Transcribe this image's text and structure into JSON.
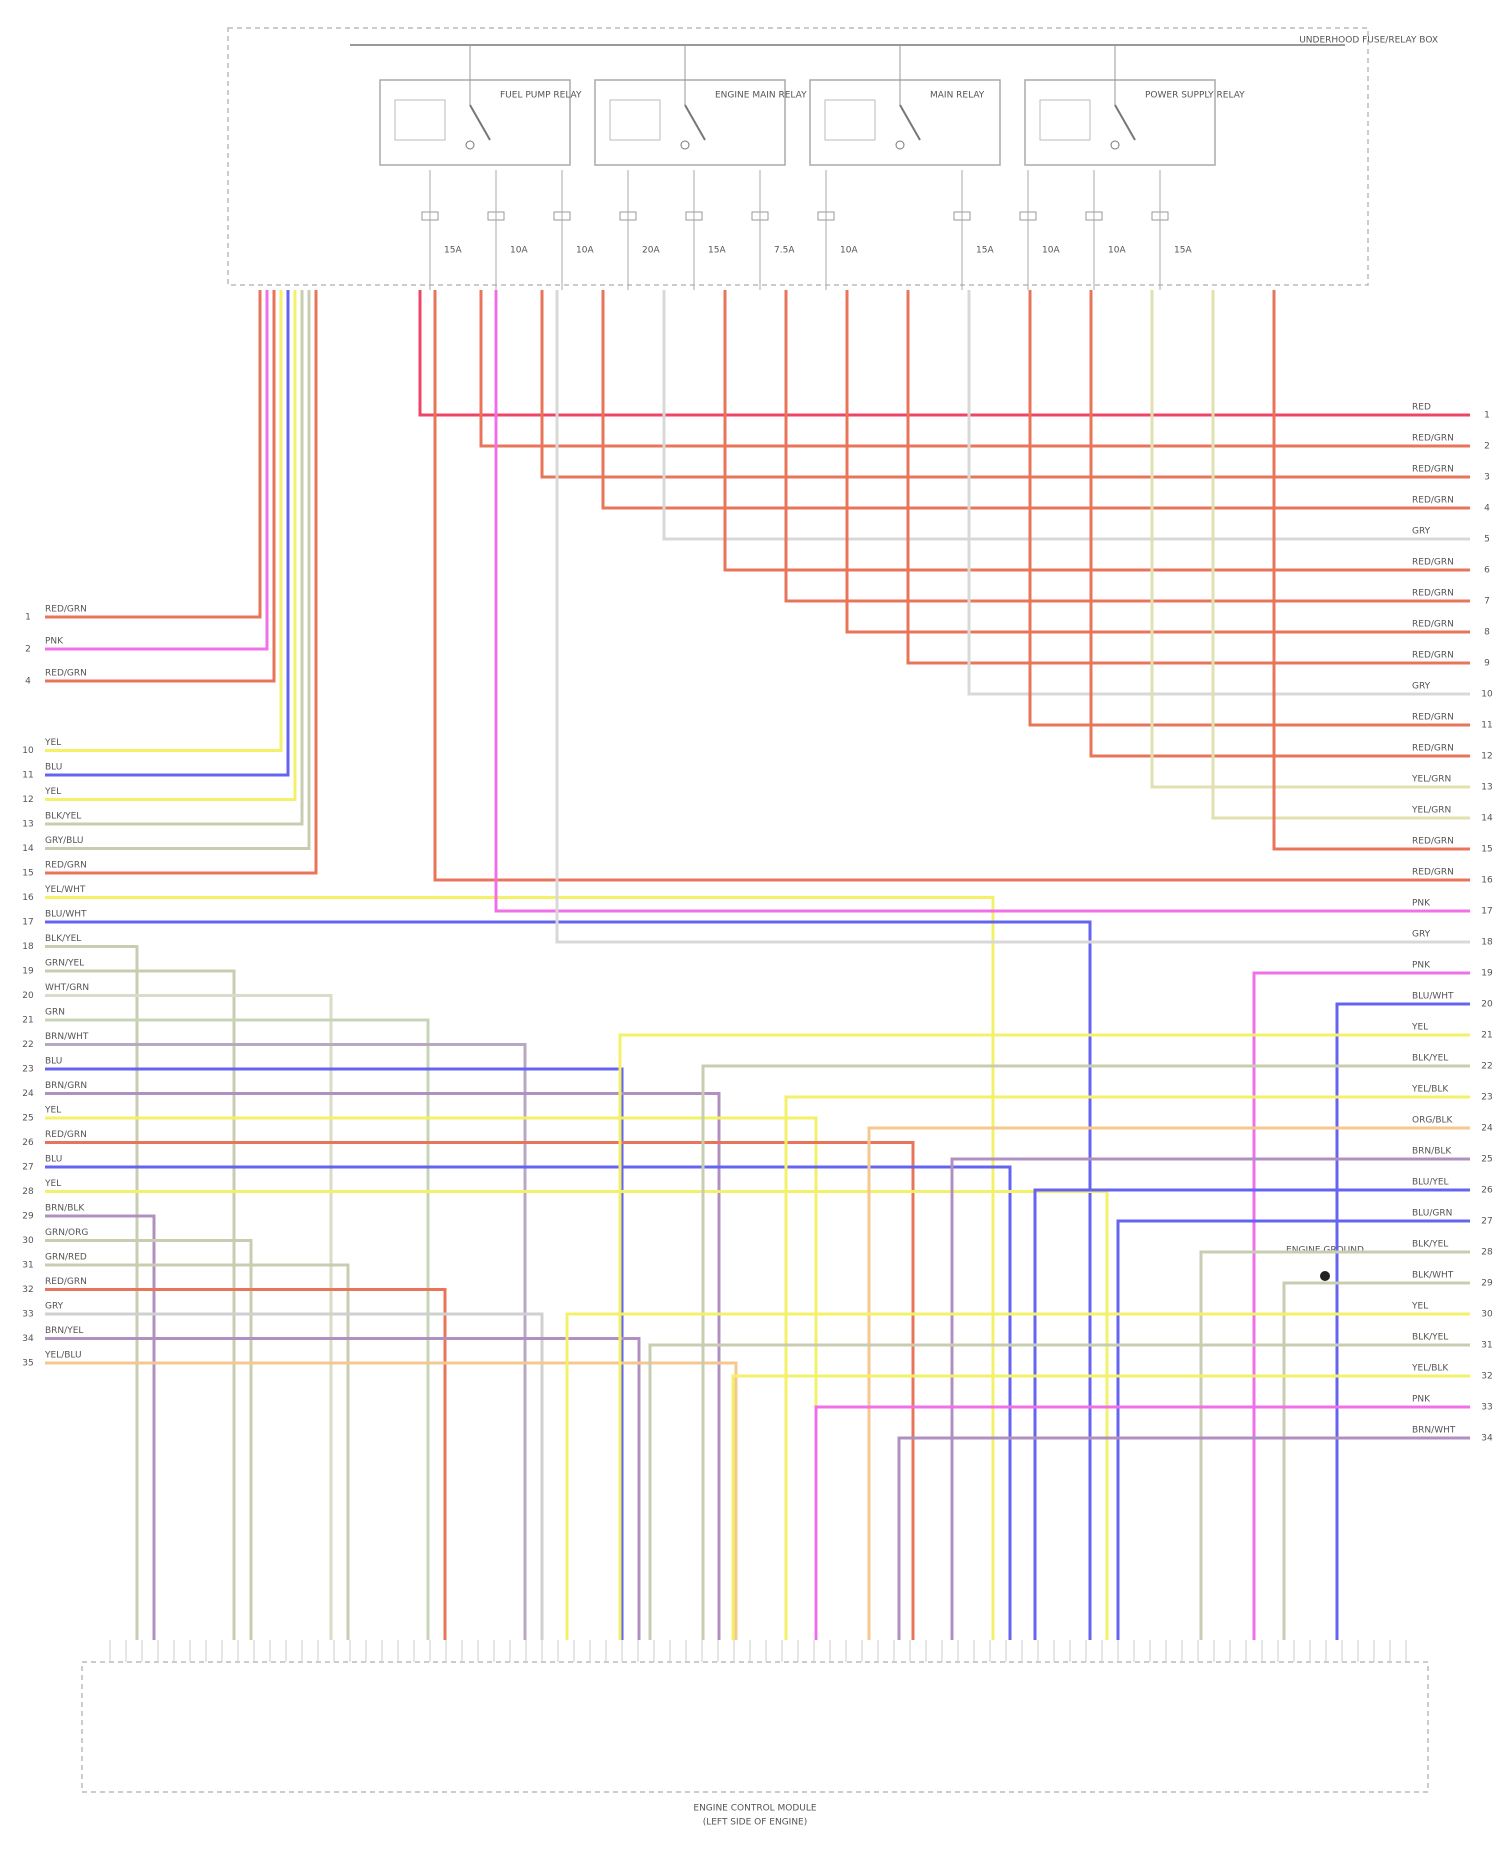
{
  "diagram": {
    "fuse_box_label": "UNDERHOOD FUSE/RELAY BOX",
    "relays": [
      {
        "label": "FUEL PUMP RELAY"
      },
      {
        "label": "ENGINE MAIN RELAY"
      },
      {
        "label": "MAIN RELAY"
      },
      {
        "label": "POWER SUPPLY RELAY"
      }
    ],
    "fuses": [
      "15A",
      "10A",
      "10A",
      "20A",
      "15A",
      "7.5A",
      "10A",
      "15A",
      "10A",
      "10A",
      "15A"
    ],
    "left_wires": [
      {
        "pin": "1",
        "label": "RED/GRN",
        "stroke": "#e8745a"
      },
      {
        "pin": "2",
        "label": "PNK",
        "stroke": "#f070e8"
      },
      {
        "pin": "4",
        "label": "RED/GRN",
        "stroke": "#e8745a"
      },
      {
        "pin": "10",
        "label": "YEL",
        "stroke": "#f3f06a"
      },
      {
        "pin": "11",
        "label": "BLU",
        "stroke": "#6464f0"
      },
      {
        "pin": "12",
        "label": "YEL",
        "stroke": "#f3f06a"
      },
      {
        "pin": "13",
        "label": "BLK/YEL",
        "stroke": "#c8ccb0"
      },
      {
        "pin": "14",
        "label": "GRY/BLU",
        "stroke": "#c8ccb0"
      },
      {
        "pin": "15",
        "label": "RED/GRN",
        "stroke": "#e8745a"
      },
      {
        "pin": "16",
        "label": "YEL/WHT",
        "stroke": "#f3f06a"
      },
      {
        "pin": "17",
        "label": "BLU/WHT",
        "stroke": "#6464f0"
      },
      {
        "pin": "18",
        "label": "BLK/YEL",
        "stroke": "#c8ccb0"
      },
      {
        "pin": "19",
        "label": "GRN/YEL",
        "stroke": "#c8ccb0"
      },
      {
        "pin": "20",
        "label": "WHT/GRN",
        "stroke": "#d8dcc8"
      },
      {
        "pin": "21",
        "label": "GRN",
        "stroke": "#c8d4b8"
      },
      {
        "pin": "22",
        "label": "BRN/WHT",
        "stroke": "#b8a8c0"
      },
      {
        "pin": "23",
        "label": "BLU",
        "stroke": "#6464f0"
      },
      {
        "pin": "24",
        "label": "BRN/GRN",
        "stroke": "#b090c0"
      },
      {
        "pin": "25",
        "label": "YEL",
        "stroke": "#f3f06a"
      },
      {
        "pin": "26",
        "label": "RED/GRN",
        "stroke": "#e8745a"
      },
      {
        "pin": "27",
        "label": "BLU",
        "stroke": "#6464f0"
      },
      {
        "pin": "28",
        "label": "YEL",
        "stroke": "#f3f06a"
      },
      {
        "pin": "29",
        "label": "BRN/BLK",
        "stroke": "#b090c0"
      },
      {
        "pin": "30",
        "label": "GRN/ORG",
        "stroke": "#c8ccb0"
      },
      {
        "pin": "31",
        "label": "GRN/RED",
        "stroke": "#c8ccb0"
      },
      {
        "pin": "32",
        "label": "RED/GRN",
        "stroke": "#e8745a"
      },
      {
        "pin": "33",
        "label": "GRY",
        "stroke": "#d0d0d0"
      },
      {
        "pin": "34",
        "label": "BRN/YEL",
        "stroke": "#b090c0"
      },
      {
        "pin": "35",
        "label": "YEL/BLU",
        "stroke": "#f5c890"
      }
    ],
    "right_wires": [
      {
        "pin": "1",
        "label": "RED",
        "stroke": "#ee4466"
      },
      {
        "pin": "2",
        "label": "RED/GRN",
        "stroke": "#e8745a"
      },
      {
        "pin": "3",
        "label": "RED/GRN",
        "stroke": "#e8745a"
      },
      {
        "pin": "4",
        "label": "RED/GRN",
        "stroke": "#e8745a"
      },
      {
        "pin": "5",
        "label": "GRY",
        "stroke": "#d8d8d8"
      },
      {
        "pin": "6",
        "label": "RED/GRN",
        "stroke": "#e8745a"
      },
      {
        "pin": "7",
        "label": "RED/GRN",
        "stroke": "#e8745a"
      },
      {
        "pin": "8",
        "label": "RED/GRN",
        "stroke": "#e8745a"
      },
      {
        "pin": "9",
        "label": "RED/GRN",
        "stroke": "#e8745a"
      },
      {
        "pin": "10",
        "label": "GRY",
        "stroke": "#d8d8d8"
      },
      {
        "pin": "11",
        "label": "RED/GRN",
        "stroke": "#e8745a"
      },
      {
        "pin": "12",
        "label": "RED/GRN",
        "stroke": "#e8745a"
      },
      {
        "pin": "13",
        "label": "YEL/GRN",
        "stroke": "#e0e0b0"
      },
      {
        "pin": "14",
        "label": "YEL/GRN",
        "stroke": "#e0e0b0"
      },
      {
        "pin": "15",
        "label": "RED/GRN",
        "stroke": "#e8745a"
      },
      {
        "pin": "16",
        "label": "RED/GRN",
        "stroke": "#e8745a"
      },
      {
        "pin": "17",
        "label": "PNK",
        "stroke": "#f070e8"
      },
      {
        "pin": "18",
        "label": "GRY",
        "stroke": "#d8d8d8"
      },
      {
        "pin": "19",
        "label": "PNK",
        "stroke": "#f070e8"
      },
      {
        "pin": "20",
        "label": "BLU/WHT",
        "stroke": "#6464f0"
      },
      {
        "pin": "21",
        "label": "YEL",
        "stroke": "#f3f06a"
      },
      {
        "pin": "22",
        "label": "BLK/YEL",
        "stroke": "#c8ccb0"
      },
      {
        "pin": "23",
        "label": "YEL/BLK",
        "stroke": "#f3f06a"
      },
      {
        "pin": "24",
        "label": "ORG/BLK",
        "stroke": "#f5c890"
      },
      {
        "pin": "25",
        "label": "BRN/BLK",
        "stroke": "#b090c0"
      },
      {
        "pin": "26",
        "label": "BLU/YEL",
        "stroke": "#6464f0"
      },
      {
        "pin": "27",
        "label": "BLU/GRN",
        "stroke": "#6464f0"
      },
      {
        "pin": "28",
        "label": "BLK/YEL",
        "stroke": "#c8ccb0"
      },
      {
        "pin": "29",
        "label": "BLK/WHT",
        "stroke": "#c8ccb0"
      },
      {
        "pin": "30",
        "label": "YEL",
        "stroke": "#f3f06a"
      },
      {
        "pin": "31",
        "label": "BLK/YEL",
        "stroke": "#c8ccb0"
      },
      {
        "pin": "32",
        "label": "YEL/BLK",
        "stroke": "#f3f06a"
      },
      {
        "pin": "33",
        "label": "PNK",
        "stroke": "#f070e8"
      },
      {
        "pin": "34",
        "label": "BRN/WHT",
        "stroke": "#b090c0"
      }
    ],
    "ground_label": "ENGINE GROUND",
    "module_label": "ENGINE CONTROL MODULE",
    "module_sublabel": "(LEFT SIDE OF ENGINE)"
  }
}
